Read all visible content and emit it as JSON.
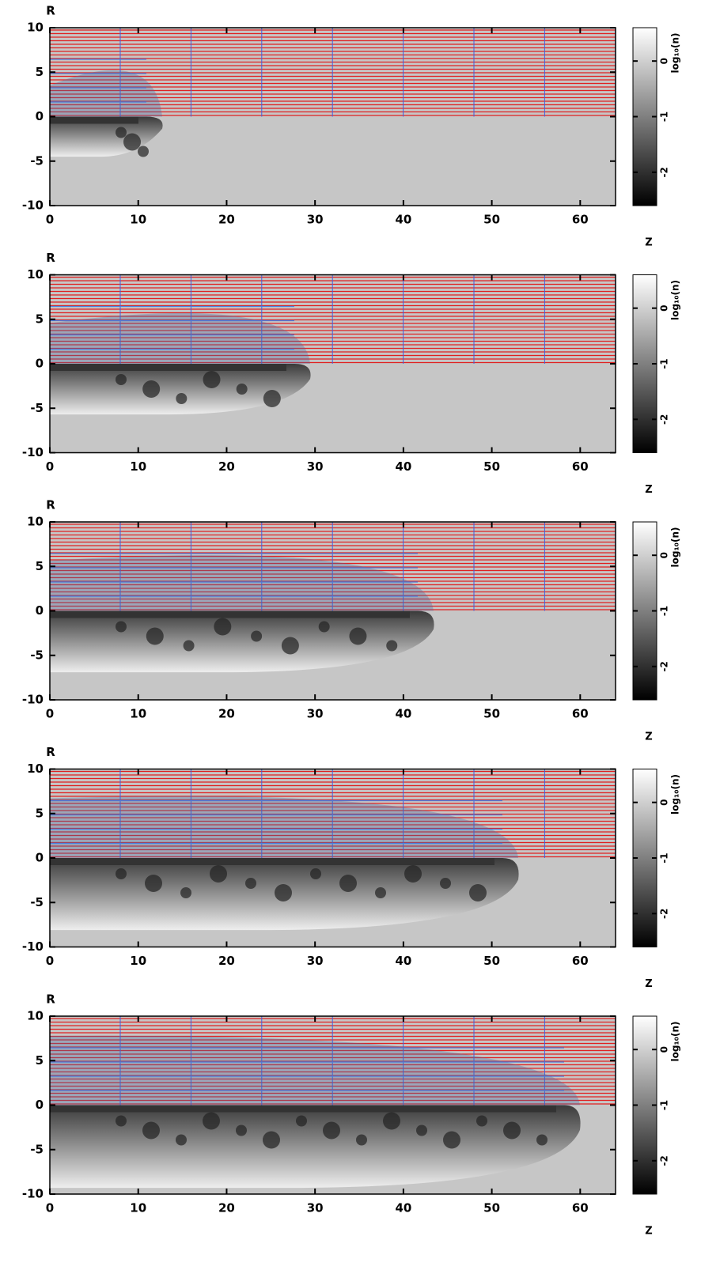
{
  "chart_data": [
    {
      "type": "image",
      "xlabel": "Z",
      "ylabel": "R",
      "xlim": [
        0,
        64
      ],
      "ylim": [
        -10,
        10
      ],
      "xticks": [
        0,
        10,
        20,
        30,
        40,
        50,
        60
      ],
      "yticks": [
        -10,
        -5,
        0,
        5,
        10
      ],
      "colorbar": {
        "label": "log₁₀(n)",
        "lim": [
          -2.6,
          0.6
        ],
        "ticks": [
          -2,
          -1,
          0
        ]
      }
    },
    {
      "type": "image",
      "xlabel": "Z",
      "ylabel": "R",
      "xlim": [
        0,
        64
      ],
      "ylim": [
        -10,
        10
      ],
      "xticks": [
        0,
        10,
        20,
        30,
        40,
        50,
        60
      ],
      "yticks": [
        -10,
        -5,
        0,
        5,
        10
      ],
      "colorbar": {
        "label": "log₁₀(n)",
        "lim": [
          -2.6,
          0.6
        ],
        "ticks": [
          -2,
          -1,
          0
        ]
      }
    },
    {
      "type": "image",
      "xlabel": "Z",
      "ylabel": "R",
      "xlim": [
        0,
        64
      ],
      "ylim": [
        -10,
        10
      ],
      "xticks": [
        0,
        10,
        20,
        30,
        40,
        50,
        60
      ],
      "yticks": [
        -10,
        -5,
        0,
        5,
        10
      ],
      "colorbar": {
        "label": "log₁₀(n)",
        "lim": [
          -2.6,
          0.6
        ],
        "ticks": [
          -2,
          -1,
          0
        ]
      }
    },
    {
      "type": "image",
      "xlabel": "Z",
      "ylabel": "R",
      "xlim": [
        0,
        64
      ],
      "ylim": [
        -10,
        10
      ],
      "xticks": [
        0,
        10,
        20,
        30,
        40,
        50,
        60
      ],
      "yticks": [
        -10,
        -5,
        0,
        5,
        10
      ],
      "colorbar": {
        "label": "log₁₀(n)",
        "lim": [
          -2.6,
          0.6
        ],
        "ticks": [
          -2,
          -1,
          0
        ]
      }
    },
    {
      "type": "image",
      "xlabel": "Z",
      "ylabel": "R",
      "xlim": [
        0,
        64
      ],
      "ylim": [
        -10,
        10
      ],
      "xticks": [
        0,
        10,
        20,
        30,
        40,
        50,
        60
      ],
      "yticks": [
        -10,
        -5,
        0,
        5,
        10
      ],
      "colorbar": {
        "label": "log₁₀(n)",
        "lim": [
          -2.6,
          0.6
        ],
        "ticks": [
          -2,
          -1,
          0
        ]
      }
    }
  ]
}
